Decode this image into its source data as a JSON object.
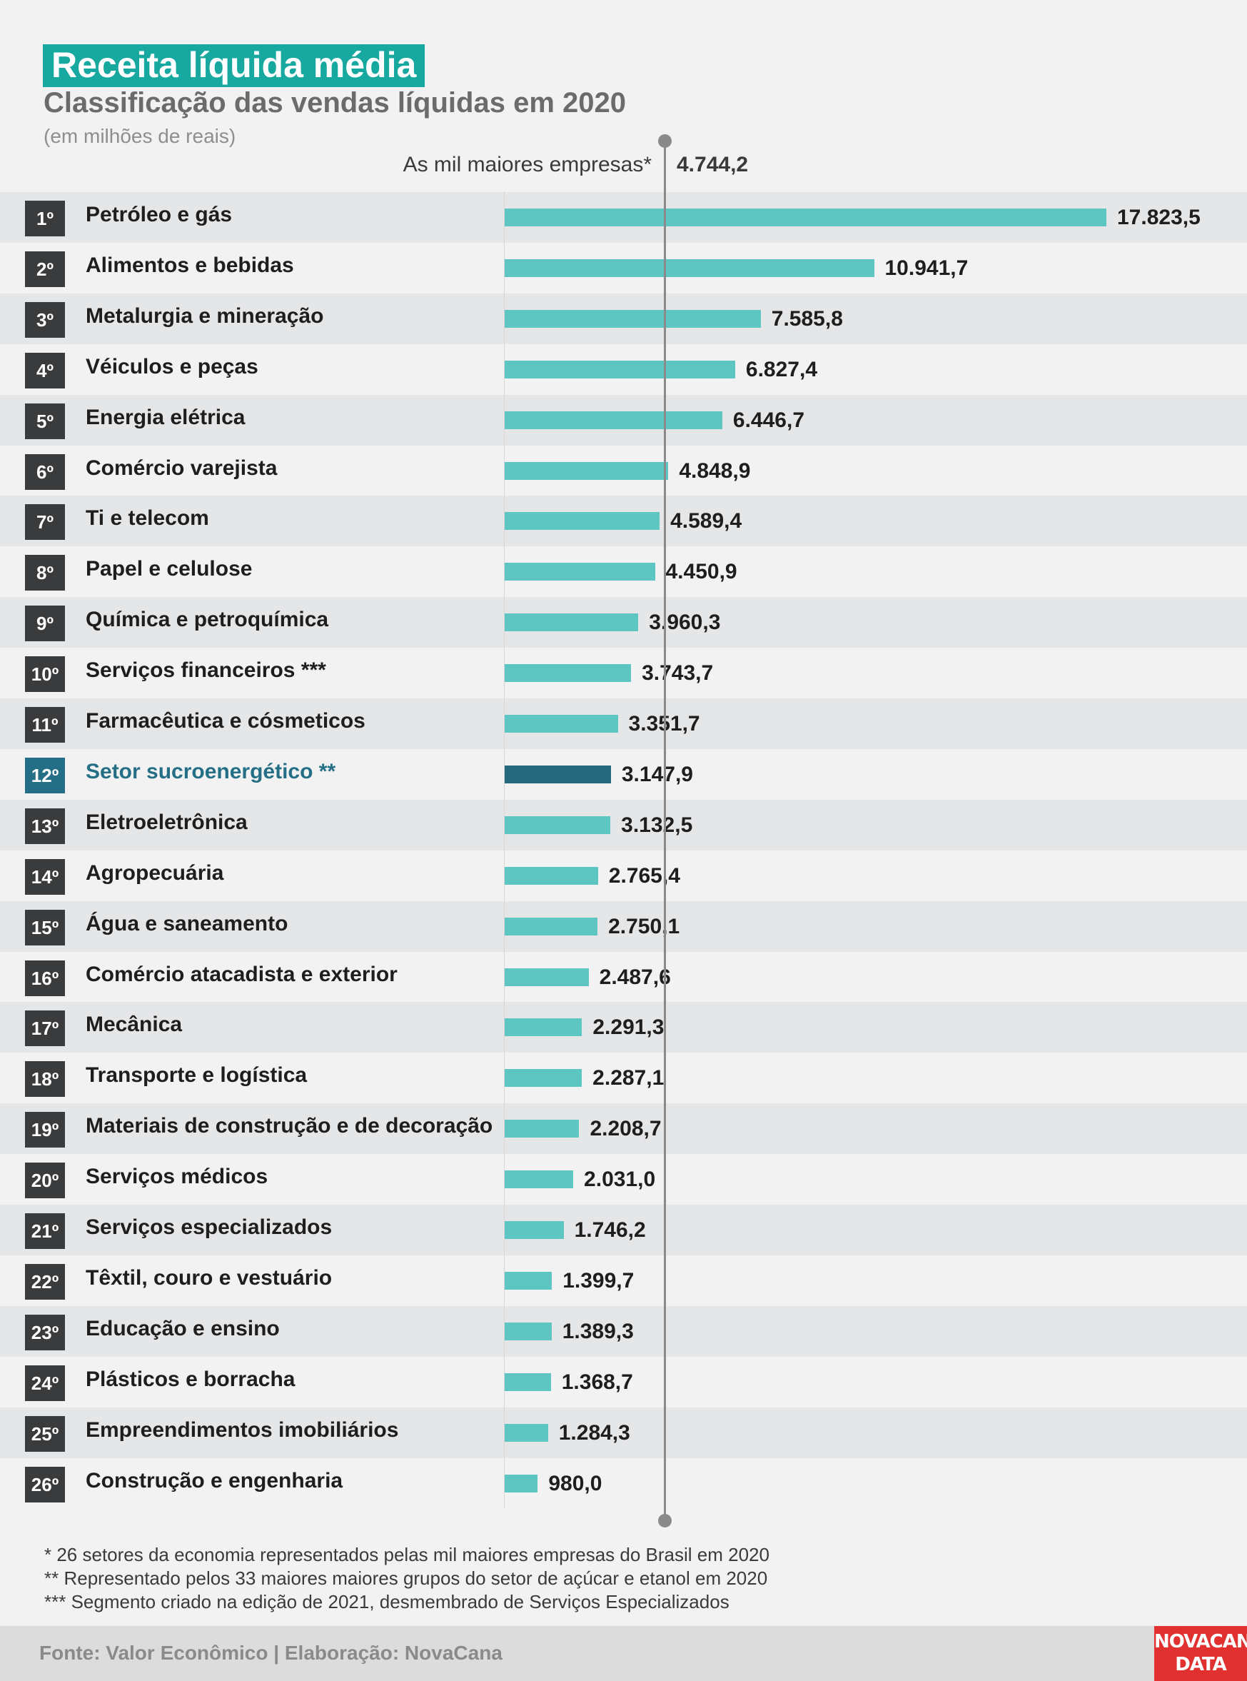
{
  "chart_data": {
    "type": "bar",
    "title": "Receita líquida média",
    "subtitle": "Classificação das vendas líquidas em 2020",
    "unit": "(em milhões de reais)",
    "orientation": "horizontal",
    "reference": {
      "label": "As mil maiores empresas*",
      "value": 4744.2,
      "display": "4.744,2"
    },
    "highlight_index": 11,
    "colors": {
      "bar": "#5ec6c2",
      "highlight": "#26687e",
      "rank": "#3a3b3c",
      "title_bg": "#17a8a0"
    },
    "rows": [
      {
        "rank": "1º",
        "label": "Petróleo e gás",
        "value": 17823.5,
        "display": "17.823,5"
      },
      {
        "rank": "2º",
        "label": "Alimentos e bebidas",
        "value": 10941.7,
        "display": "10.941,7"
      },
      {
        "rank": "3º",
        "label": "Metalurgia e mineração",
        "value": 7585.8,
        "display": "7.585,8"
      },
      {
        "rank": "4º",
        "label": "Véiculos e peças",
        "value": 6827.4,
        "display": "6.827,4"
      },
      {
        "rank": "5º",
        "label": "Energia elétrica",
        "value": 6446.7,
        "display": "6.446,7"
      },
      {
        "rank": "6º",
        "label": "Comércio varejista",
        "value": 4848.9,
        "display": "4.848,9"
      },
      {
        "rank": "7º",
        "label": "Ti e telecom",
        "value": 4589.4,
        "display": "4.589,4"
      },
      {
        "rank": "8º",
        "label": "Papel e celulose",
        "value": 4450.9,
        "display": "4.450,9"
      },
      {
        "rank": "9º",
        "label": "Química e petroquímica",
        "value": 3960.3,
        "display": "3.960,3"
      },
      {
        "rank": "10º",
        "label": "Serviços financeiros ***",
        "value": 3743.7,
        "display": "3.743,7"
      },
      {
        "rank": "11º",
        "label": "Farmacêutica e cósmeticos",
        "value": 3351.7,
        "display": "3.351,7"
      },
      {
        "rank": "12º",
        "label": "Setor sucroenergético **",
        "value": 3147.9,
        "display": "3.147,9"
      },
      {
        "rank": "13º",
        "label": "Eletroeletrônica",
        "value": 3132.5,
        "display": "3.132,5"
      },
      {
        "rank": "14º",
        "label": "Agropecuária",
        "value": 2765.4,
        "display": "2.765,4"
      },
      {
        "rank": "15º",
        "label": "Água e saneamento",
        "value": 2750.1,
        "display": "2.750,1"
      },
      {
        "rank": "16º",
        "label": "Comércio atacadista e exterior",
        "value": 2487.6,
        "display": "2.487,6"
      },
      {
        "rank": "17º",
        "label": "Mecânica",
        "value": 2291.3,
        "display": "2.291,3"
      },
      {
        "rank": "18º",
        "label": "Transporte e logística",
        "value": 2287.1,
        "display": "2.287,1"
      },
      {
        "rank": "19º",
        "label": "Materiais de construção e de decoração",
        "value": 2208.7,
        "display": "2.208,7"
      },
      {
        "rank": "20º",
        "label": "Serviços médicos",
        "value": 2031.0,
        "display": "2.031,0"
      },
      {
        "rank": "21º",
        "label": "Serviços especializados",
        "value": 1746.2,
        "display": "1.746,2"
      },
      {
        "rank": "22º",
        "label": "Têxtil, couro e vestuário",
        "value": 1399.7,
        "display": "1.399,7"
      },
      {
        "rank": "23º",
        "label": "Educação e ensino",
        "value": 1389.3,
        "display": "1.389,3"
      },
      {
        "rank": "24º",
        "label": "Plásticos e borracha",
        "value": 1368.7,
        "display": "1.368,7"
      },
      {
        "rank": "25º",
        "label": "Empreendimentos imobiliários",
        "value": 1284.3,
        "display": "1.284,3"
      },
      {
        "rank": "26º",
        "label": "Construção e engenharia",
        "value": 980.0,
        "display": "980,0"
      }
    ]
  },
  "notes": [
    "* 26 setores da economia representados pelas mil maiores empresas do Brasil em 2020",
    "** Representado pelos 33 maiores maiores grupos do setor de açúcar e etanol em 2020",
    "*** Segmento criado na edição de 2021, desmembrado de Serviços Especializados"
  ],
  "footer": {
    "source": "Fonte: Valor Econômico | Elaboração: NovaCana",
    "logo_line1": "NOVACANA",
    "logo_line2": "DATA"
  }
}
